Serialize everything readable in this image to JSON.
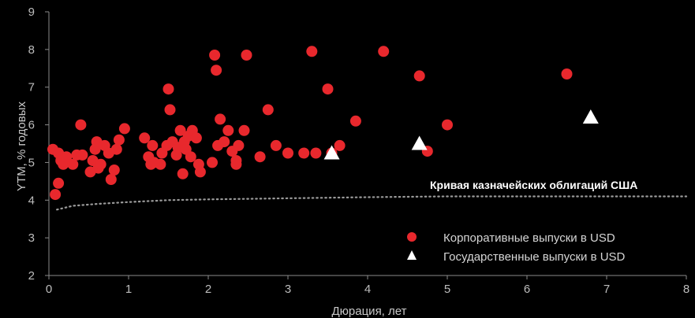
{
  "chart_data": {
    "type": "scatter",
    "xlabel": "Дюрация, лет",
    "ylabel": "YTM, % годовых",
    "xlim": [
      0,
      8
    ],
    "ylim": [
      2,
      9
    ],
    "xticks": [
      "0",
      "1",
      "2",
      "3",
      "4",
      "5",
      "6",
      "7",
      "8"
    ],
    "yticks": [
      "2",
      "3",
      "4",
      "5",
      "6",
      "7",
      "8",
      "9"
    ],
    "grid": false,
    "legend_placement": "bottom-right",
    "annotation": "Кривая казначейских облигаций США",
    "series": [
      {
        "name": "Корпоративные выпуски в USD",
        "marker": "circle",
        "color": "#e8282d",
        "points": [
          [
            0.05,
            5.35
          ],
          [
            0.08,
            4.15
          ],
          [
            0.12,
            4.45
          ],
          [
            0.12,
            5.25
          ],
          [
            0.15,
            5.05
          ],
          [
            0.18,
            4.95
          ],
          [
            0.22,
            5.15
          ],
          [
            0.3,
            4.95
          ],
          [
            0.35,
            5.2
          ],
          [
            0.4,
            6.0
          ],
          [
            0.42,
            5.2
          ],
          [
            0.52,
            4.75
          ],
          [
            0.55,
            5.05
          ],
          [
            0.58,
            5.35
          ],
          [
            0.6,
            5.55
          ],
          [
            0.62,
            4.85
          ],
          [
            0.65,
            4.95
          ],
          [
            0.7,
            5.45
          ],
          [
            0.75,
            5.25
          ],
          [
            0.78,
            4.55
          ],
          [
            0.82,
            4.8
          ],
          [
            0.85,
            5.35
          ],
          [
            0.88,
            5.6
          ],
          [
            0.95,
            5.9
          ],
          [
            1.2,
            5.65
          ],
          [
            1.25,
            5.15
          ],
          [
            1.28,
            4.95
          ],
          [
            1.3,
            5.45
          ],
          [
            1.32,
            5.0
          ],
          [
            1.4,
            4.95
          ],
          [
            1.42,
            5.25
          ],
          [
            1.48,
            5.45
          ],
          [
            1.5,
            6.95
          ],
          [
            1.52,
            6.4
          ],
          [
            1.55,
            5.55
          ],
          [
            1.6,
            5.2
          ],
          [
            1.62,
            5.4
          ],
          [
            1.65,
            5.85
          ],
          [
            1.68,
            4.7
          ],
          [
            1.7,
            5.55
          ],
          [
            1.72,
            5.35
          ],
          [
            1.75,
            5.7
          ],
          [
            1.78,
            5.15
          ],
          [
            1.8,
            5.85
          ],
          [
            1.85,
            5.65
          ],
          [
            1.88,
            4.95
          ],
          [
            1.9,
            4.75
          ],
          [
            2.05,
            5.0
          ],
          [
            2.08,
            7.85
          ],
          [
            2.1,
            7.45
          ],
          [
            2.12,
            5.45
          ],
          [
            2.15,
            6.15
          ],
          [
            2.2,
            5.55
          ],
          [
            2.25,
            5.85
          ],
          [
            2.3,
            5.3
          ],
          [
            2.35,
            5.05
          ],
          [
            2.35,
            4.95
          ],
          [
            2.38,
            5.45
          ],
          [
            2.45,
            5.85
          ],
          [
            2.48,
            7.85
          ],
          [
            2.65,
            5.15
          ],
          [
            2.75,
            6.4
          ],
          [
            2.85,
            5.45
          ],
          [
            3.0,
            5.25
          ],
          [
            3.2,
            5.25
          ],
          [
            3.3,
            7.95
          ],
          [
            3.35,
            5.25
          ],
          [
            3.5,
            6.95
          ],
          [
            3.55,
            5.25
          ],
          [
            3.65,
            5.45
          ],
          [
            3.85,
            6.1
          ],
          [
            4.2,
            7.95
          ],
          [
            4.65,
            7.3
          ],
          [
            4.75,
            5.3
          ],
          [
            5.0,
            6.0
          ],
          [
            6.5,
            7.35
          ]
        ]
      },
      {
        "name": "Государственные выпуски в USD",
        "marker": "triangle",
        "color": "#ffffff",
        "points": [
          [
            3.55,
            5.25
          ],
          [
            4.65,
            5.5
          ],
          [
            6.8,
            6.2
          ]
        ]
      },
      {
        "name": "Кривая казначейских облигаций США",
        "marker": "dotted-line",
        "color": "#9a9a9a",
        "points": [
          [
            0.1,
            3.75
          ],
          [
            0.3,
            3.85
          ],
          [
            0.6,
            3.9
          ],
          [
            1.0,
            3.95
          ],
          [
            1.5,
            4.0
          ],
          [
            2.0,
            4.02
          ],
          [
            3.0,
            4.05
          ],
          [
            4.0,
            4.08
          ],
          [
            5.0,
            4.1
          ],
          [
            6.0,
            4.1
          ],
          [
            7.0,
            4.1
          ],
          [
            8.0,
            4.1
          ]
        ]
      }
    ]
  }
}
